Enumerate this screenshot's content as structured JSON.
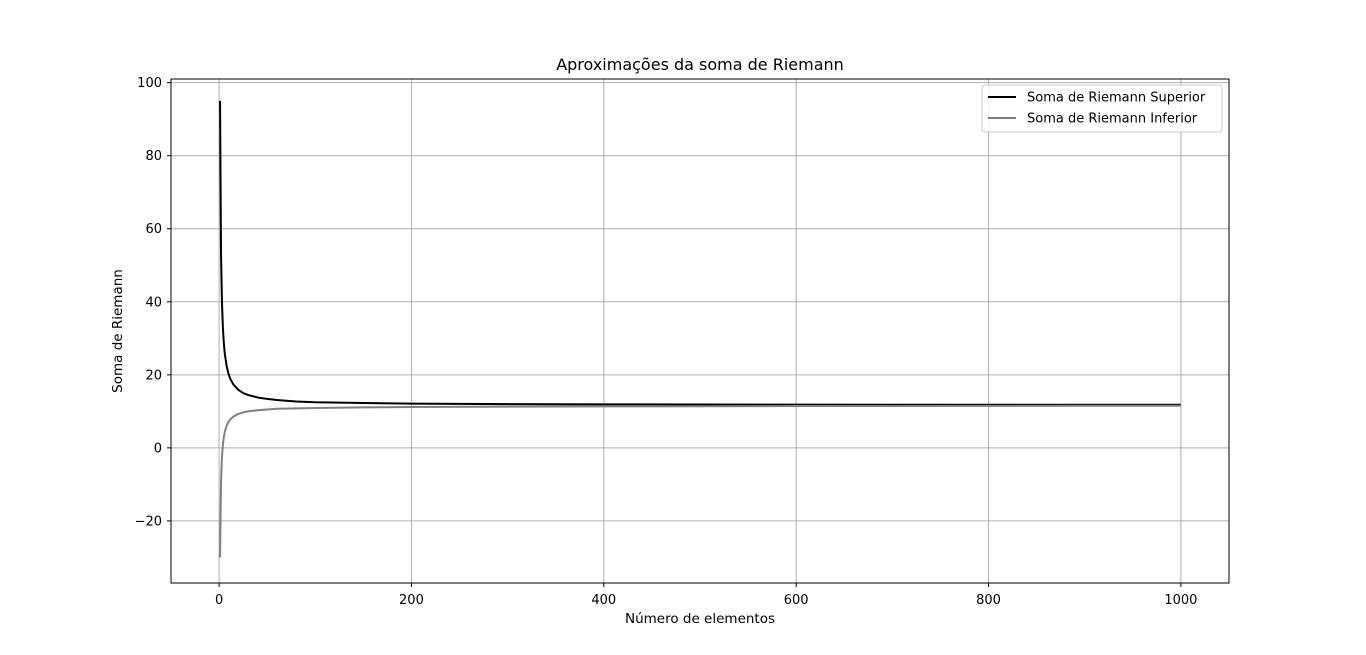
{
  "chart_data": {
    "type": "line",
    "title": "Aproximações da soma de Riemann",
    "xlabel": "Número de elementos",
    "ylabel": "Soma de Riemann",
    "xlim": [
      -50,
      1050
    ],
    "ylim": [
      -37,
      101
    ],
    "xticks": [
      0,
      200,
      400,
      600,
      800,
      1000
    ],
    "xtick_labels": [
      "0",
      "200",
      "400",
      "600",
      "800",
      "1000"
    ],
    "yticks": [
      -20,
      0,
      20,
      40,
      60,
      80,
      100
    ],
    "ytick_labels": [
      "−20",
      "0",
      "20",
      "40",
      "60",
      "80",
      "100"
    ],
    "grid": true,
    "legend": "upper right",
    "converges_to": 11.7,
    "series": [
      {
        "name": "Soma de Riemann Superior",
        "color": "#000000",
        "x": [
          1,
          2,
          3,
          4,
          5,
          6,
          8,
          10,
          12,
          15,
          20,
          25,
          30,
          40,
          50,
          60,
          80,
          100,
          150,
          200,
          300,
          400,
          500,
          600,
          700,
          800,
          900,
          1000
        ],
        "y": [
          95.0,
          53.3,
          39.5,
          32.6,
          28.4,
          25.6,
          22.2,
          20.1,
          18.7,
          17.3,
          15.9,
          15.0,
          14.5,
          13.8,
          13.4,
          13.1,
          12.7,
          12.5,
          12.3,
          12.1,
          11.98,
          11.91,
          11.87,
          11.84,
          11.82,
          11.81,
          11.8,
          11.79
        ]
      },
      {
        "name": "Soma de Riemann Inferior",
        "color": "#808080",
        "x": [
          1,
          2,
          3,
          4,
          5,
          6,
          8,
          10,
          12,
          15,
          20,
          25,
          30,
          40,
          50,
          60,
          80,
          100,
          150,
          200,
          300,
          400,
          500,
          600,
          700,
          800,
          900,
          1000
        ],
        "y": [
          -30.0,
          -9.3,
          -2.4,
          1.0,
          3.1,
          4.5,
          6.2,
          7.2,
          7.9,
          8.6,
          9.3,
          9.7,
          10.0,
          10.3,
          10.5,
          10.7,
          10.8,
          10.9,
          11.1,
          11.2,
          11.3,
          11.36,
          11.41,
          11.46,
          11.48,
          11.5,
          11.52,
          11.54
        ]
      }
    ]
  }
}
